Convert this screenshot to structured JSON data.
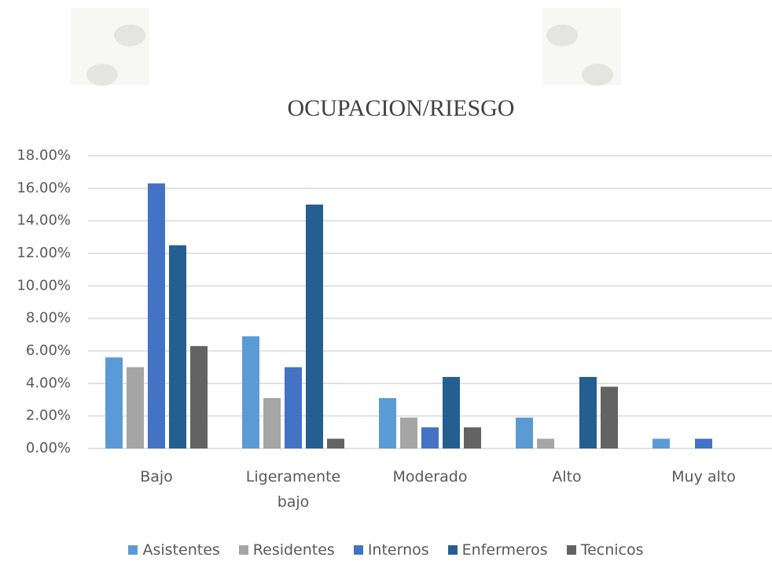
{
  "chart_data": {
    "type": "bar",
    "title": "OCUPACION/RIESGO",
    "categories": [
      "Bajo",
      "Ligeramente bajo",
      "Moderado",
      "Alto",
      "Muy alto"
    ],
    "series": [
      {
        "name": "Asistentes",
        "color": "#5b9bd5",
        "values": [
          5.6,
          6.9,
          3.1,
          1.9,
          0.6
        ]
      },
      {
        "name": "Residentes",
        "color": "#a5a5a5",
        "values": [
          5.0,
          3.1,
          1.9,
          0.6,
          0
        ]
      },
      {
        "name": "Internos",
        "color": "#4472c4",
        "values": [
          16.3,
          5.0,
          1.3,
          0,
          0.6
        ]
      },
      {
        "name": "Enfermeros",
        "color": "#255e91",
        "values": [
          12.5,
          15.0,
          4.4,
          4.4,
          0
        ]
      },
      {
        "name": "Tecnicos",
        "color": "#636363",
        "values": [
          6.3,
          0.6,
          1.3,
          3.8,
          0
        ]
      }
    ],
    "ylim": [
      0,
      18
    ],
    "yticks": [
      {
        "value": 0,
        "label": "0.00%"
      },
      {
        "value": 2,
        "label": "2.00%"
      },
      {
        "value": 4,
        "label": "4.00%"
      },
      {
        "value": 6,
        "label": "6.00%"
      },
      {
        "value": 8,
        "label": "8.00%"
      },
      {
        "value": 10,
        "label": "10.00%"
      },
      {
        "value": 12,
        "label": "12.00%"
      },
      {
        "value": 14,
        "label": "14.00%"
      },
      {
        "value": 16,
        "label": "16.00%"
      },
      {
        "value": 18,
        "label": "18.00%"
      }
    ],
    "grid": true,
    "legend": "bottom"
  }
}
